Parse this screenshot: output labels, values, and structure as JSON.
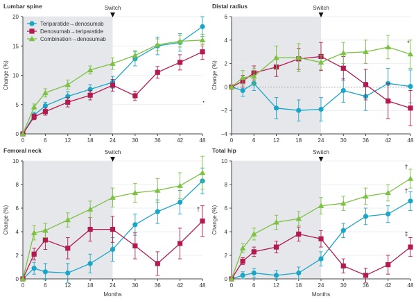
{
  "figure": {
    "x_axis_label": "Months",
    "y_axis_label": "Change (%)",
    "switch_label": "Switch",
    "x_ticks": [
      0,
      6,
      12,
      18,
      24,
      30,
      36,
      42,
      48
    ]
  },
  "colors": {
    "teriparatide_to_denosumab": "#1ba6c7",
    "denosumab_to_teriparatide": "#b11b4f",
    "combination_to_denosumab": "#7cc142",
    "shade": "#e5e7ea",
    "axis": "#444444",
    "grid": "#e8eaed",
    "zero_line": "#888888"
  },
  "legend": [
    {
      "key": "teriparatide_to_denosumab",
      "label": "Teriparatide→denosumab",
      "marker": "circle"
    },
    {
      "key": "denosumab_to_teriparatide",
      "label": "Denosumab→teriparatide",
      "marker": "square"
    },
    {
      "key": "combination_to_denosumab",
      "label": "Combination→denosumab",
      "marker": "triangle"
    }
  ],
  "chart_data": [
    {
      "type": "line",
      "title": "Lumbar spine",
      "xlabel": "",
      "ylabel": "Change (%)",
      "xlim": [
        0,
        48
      ],
      "ylim": [
        0,
        20
      ],
      "yticks": [
        0,
        5,
        10,
        15,
        20
      ],
      "zero_line": false,
      "legend": "top-left",
      "switch_month": 24,
      "x": [
        0,
        3,
        6,
        12,
        18,
        24,
        30,
        36,
        42,
        48
      ],
      "series": [
        {
          "key": "teriparatide_to_denosumab",
          "name": "Teriparatide→denosumab",
          "values": [
            0,
            3.2,
            4.8,
            6.4,
            7.6,
            8.8,
            12.8,
            15.0,
            15.6,
            18.3
          ],
          "errors": [
            0,
            0.5,
            0.6,
            0.8,
            0.8,
            1.0,
            1.2,
            1.5,
            1.5,
            1.7
          ],
          "annotations": []
        },
        {
          "key": "denosumab_to_teriparatide",
          "name": "Denosumab→teriparatide",
          "values": [
            0,
            2.9,
            3.8,
            5.4,
            6.6,
            8.3,
            6.5,
            10.5,
            12.2,
            14.0
          ],
          "errors": [
            0,
            0.5,
            0.6,
            0.8,
            0.8,
            1.0,
            0.8,
            1.0,
            1.3,
            1.3
          ],
          "annotations": []
        },
        {
          "key": "combination_to_denosumab",
          "name": "Combination→denosumab",
          "values": [
            0,
            4.6,
            7.0,
            8.4,
            10.9,
            12.0,
            13.4,
            15.2,
            15.8,
            16.0
          ],
          "errors": [
            0,
            0.5,
            0.7,
            0.8,
            0.7,
            1.0,
            0.8,
            1.0,
            1.0,
            1.0
          ],
          "annotations": []
        }
      ],
      "extra_marks": [
        "."
      ]
    },
    {
      "type": "line",
      "title": "Distal radius",
      "xlabel": "",
      "ylabel": "Change (%)",
      "xlim": [
        0,
        48
      ],
      "ylim": [
        -4,
        6
      ],
      "yticks": [
        -4,
        -2,
        0,
        2,
        4,
        6
      ],
      "zero_line": true,
      "switch_month": 24,
      "x": [
        0,
        3,
        6,
        12,
        18,
        24,
        30,
        36,
        42,
        48
      ],
      "series": [
        {
          "key": "teriparatide_to_denosumab",
          "name": "Teriparatide→denosumab",
          "values": [
            0,
            -0.3,
            0.3,
            -1.8,
            -2.0,
            -1.9,
            -0.3,
            -0.8,
            0.3,
            0.05
          ],
          "errors": [
            0,
            0.5,
            0.6,
            0.9,
            0.9,
            1.0,
            1.0,
            1.2,
            1.3,
            1.4
          ],
          "annotations": []
        },
        {
          "key": "denosumab_to_teriparatide",
          "name": "Denosumab→teriparatide",
          "values": [
            0,
            0.5,
            1.2,
            1.7,
            2.4,
            2.6,
            1.6,
            0.2,
            -1.2,
            -1.8
          ],
          "errors": [
            0,
            0.5,
            0.6,
            0.8,
            0.9,
            1.2,
            1.0,
            1.3,
            1.5,
            1.5
          ],
          "annotations": []
        },
        {
          "key": "combination_to_denosumab",
          "name": "Combination→denosumab",
          "values": [
            0,
            0.8,
            0.9,
            2.5,
            2.5,
            2.1,
            2.9,
            3.0,
            3.4,
            2.8
          ],
          "errors": [
            0,
            0.6,
            0.7,
            1.0,
            1.2,
            0.6,
            0.9,
            1.0,
            1.0,
            1.2
          ],
          "annotations": [
            {
              "text": "*"
            }
          ]
        }
      ],
      "extra_marks": []
    },
    {
      "type": "line",
      "title": "Femoral neck",
      "xlabel": "Months",
      "ylabel": "Change (%)",
      "xlim": [
        0,
        48
      ],
      "ylim": [
        0,
        10
      ],
      "yticks": [
        0,
        2,
        4,
        6,
        8,
        10
      ],
      "zero_line": false,
      "switch_month": 24,
      "x": [
        0,
        3,
        6,
        12,
        18,
        24,
        30,
        36,
        42,
        48
      ],
      "series": [
        {
          "key": "teriparatide_to_denosumab",
          "name": "Teriparatide→denosumab",
          "values": [
            0,
            0.9,
            0.6,
            0.5,
            1.3,
            2.5,
            4.6,
            5.7,
            6.5,
            8.3
          ],
          "errors": [
            0,
            0.5,
            0.7,
            0.8,
            0.8,
            1.0,
            0.9,
            1.0,
            1.0,
            1.1
          ],
          "annotations": []
        },
        {
          "key": "denosumab_to_teriparatide",
          "name": "Denosumab→teriparatide",
          "values": [
            0,
            2.1,
            3.3,
            2.6,
            4.2,
            4.2,
            2.8,
            1.3,
            3.0,
            4.9
          ],
          "errors": [
            0,
            0.5,
            0.8,
            0.9,
            1.0,
            1.1,
            1.1,
            1.0,
            1.3,
            1.3
          ],
          "annotations": [
            {
              "text": "†"
            }
          ]
        },
        {
          "key": "combination_to_denosumab",
          "name": "Combination→denosumab",
          "values": [
            0,
            3.9,
            4.1,
            5.0,
            5.9,
            6.9,
            7.3,
            7.5,
            7.9,
            9.0
          ],
          "errors": [
            0,
            0.6,
            0.6,
            0.6,
            0.7,
            0.8,
            0.8,
            1.0,
            1.1,
            1.4
          ],
          "annotations": []
        }
      ],
      "extra_marks": []
    },
    {
      "type": "line",
      "title": "Total hip",
      "xlabel": "Months",
      "ylabel": "Change (%)",
      "xlim": [
        0,
        48
      ],
      "ylim": [
        0,
        10
      ],
      "yticks": [
        0,
        2,
        4,
        6,
        8,
        10
      ],
      "zero_line": false,
      "switch_month": 24,
      "x": [
        0,
        3,
        6,
        12,
        18,
        24,
        30,
        36,
        42,
        48
      ],
      "series": [
        {
          "key": "teriparatide_to_denosumab",
          "name": "Teriparatide→denosumab",
          "values": [
            0,
            0.3,
            0.5,
            0.3,
            0.5,
            1.7,
            4.1,
            5.3,
            5.5,
            6.6
          ],
          "errors": [
            0,
            0.3,
            0.4,
            0.4,
            0.5,
            0.6,
            0.6,
            0.7,
            0.7,
            0.8
          ],
          "annotations": [
            {
              "text": "†"
            }
          ]
        },
        {
          "key": "denosumab_to_teriparatide",
          "name": "Denosumab→teriparatide",
          "values": [
            0,
            1.5,
            2.3,
            2.7,
            3.8,
            3.4,
            1.1,
            0.3,
            1.2,
            2.7
          ],
          "errors": [
            0,
            0.3,
            0.4,
            0.5,
            0.6,
            0.7,
            0.6,
            0.6,
            0.8,
            0.8
          ],
          "annotations": [
            {
              "text": "‡"
            }
          ]
        },
        {
          "key": "combination_to_denosumab",
          "name": "Combination→denosumab",
          "values": [
            0,
            2.6,
            3.8,
            4.8,
            5.1,
            6.2,
            6.4,
            7.0,
            7.3,
            8.5
          ],
          "errors": [
            0,
            0.4,
            0.5,
            0.6,
            0.6,
            0.7,
            0.6,
            0.7,
            0.7,
            0.8
          ],
          "annotations": [
            {
              "text": "†"
            }
          ]
        }
      ],
      "extra_marks": []
    }
  ]
}
